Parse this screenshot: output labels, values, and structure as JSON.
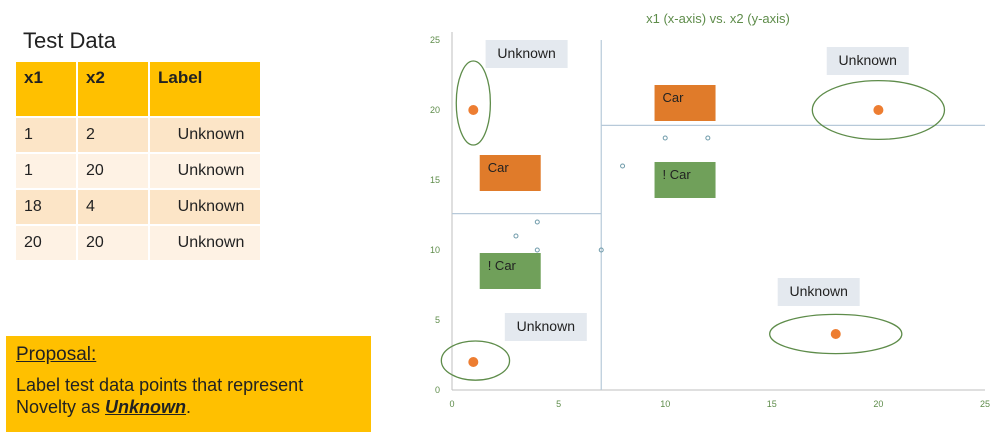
{
  "test_data": {
    "title": "Test Data",
    "columns": [
      "x1",
      "x2",
      "Label"
    ],
    "rows": [
      [
        "1",
        "2",
        "Unknown"
      ],
      [
        "1",
        "20",
        "Unknown"
      ],
      [
        "18",
        "4",
        "Unknown"
      ],
      [
        "20",
        "20",
        "Unknown"
      ]
    ]
  },
  "proposal": {
    "heading": "Proposal:",
    "text_before": "Label test data points that represent Novelty as ",
    "emphasis": "Unknown",
    "text_after": "."
  },
  "chart_data": {
    "type": "scatter",
    "title": "x1 (x-axis) vs. x2 (y-axis)",
    "xlabel": "",
    "ylabel": "",
    "xlim": [
      0,
      25
    ],
    "ylim": [
      0,
      25
    ],
    "x_ticks": [
      0,
      5,
      10,
      15,
      20,
      25
    ],
    "y_ticks": [
      0,
      5,
      10,
      15,
      20,
      25
    ],
    "grid": false,
    "colors": {
      "title": "#5E8C4A",
      "tick_labels": "#5E8C4A",
      "axis": "#BFBFBF",
      "divider": "#B7C9D9",
      "test_point": "#ED7D31",
      "ellipse": "#5E8C4A",
      "training_point": "#6F9BAA",
      "car_box": "#E07B2A",
      "notcar_box": "#70A05A",
      "unknown_box": "#E4E9EF"
    },
    "training_points": [
      {
        "x": 3,
        "y": 11
      },
      {
        "x": 4,
        "y": 12
      },
      {
        "x": 4,
        "y": 10
      },
      {
        "x": 7,
        "y": 10
      },
      {
        "x": 8,
        "y": 16
      },
      {
        "x": 10,
        "y": 18
      },
      {
        "x": 12,
        "y": 18
      }
    ],
    "test_points": [
      {
        "x": 1,
        "y": 2
      },
      {
        "x": 1,
        "y": 20
      },
      {
        "x": 18,
        "y": 4
      },
      {
        "x": 20,
        "y": 20
      }
    ],
    "dividers": [
      {
        "x1": 7,
        "y1": 0,
        "x2": 7,
        "y2": 25
      },
      {
        "x1": 0,
        "y1": 12.6,
        "x2": 7,
        "y2": 12.6
      },
      {
        "x1": 7,
        "y1": 18.9,
        "x2": 25,
        "y2": 18.9
      }
    ],
    "region_labels": [
      {
        "text": "Car",
        "x": 1.3,
        "y": 15.5,
        "kind": "car"
      },
      {
        "text": "! Car",
        "x": 1.3,
        "y": 8.5,
        "kind": "notcar"
      },
      {
        "text": "Car",
        "x": 9.5,
        "y": 20.5,
        "kind": "car"
      },
      {
        "text": "! Car",
        "x": 9.5,
        "y": 15,
        "kind": "notcar"
      }
    ],
    "unknown_labels": [
      {
        "text": "Unknown",
        "x": 3.5,
        "y": 24
      },
      {
        "text": "Unknown",
        "x": 19.5,
        "y": 23.5
      },
      {
        "text": "Unknown",
        "x": 17.2,
        "y": 7
      },
      {
        "text": "Unknown",
        "x": 4.4,
        "y": 4.5
      }
    ],
    "ellipses": [
      {
        "cx": 1,
        "cy": 20.5,
        "rx": 0.8,
        "ry": 3
      },
      {
        "cx": 20,
        "cy": 20,
        "rx": 3.1,
        "ry": 2.1
      },
      {
        "cx": 18,
        "cy": 4,
        "rx": 3.1,
        "ry": 1.4
      },
      {
        "cx": 1.1,
        "cy": 2.1,
        "rx": 1.6,
        "ry": 1.4
      }
    ]
  }
}
